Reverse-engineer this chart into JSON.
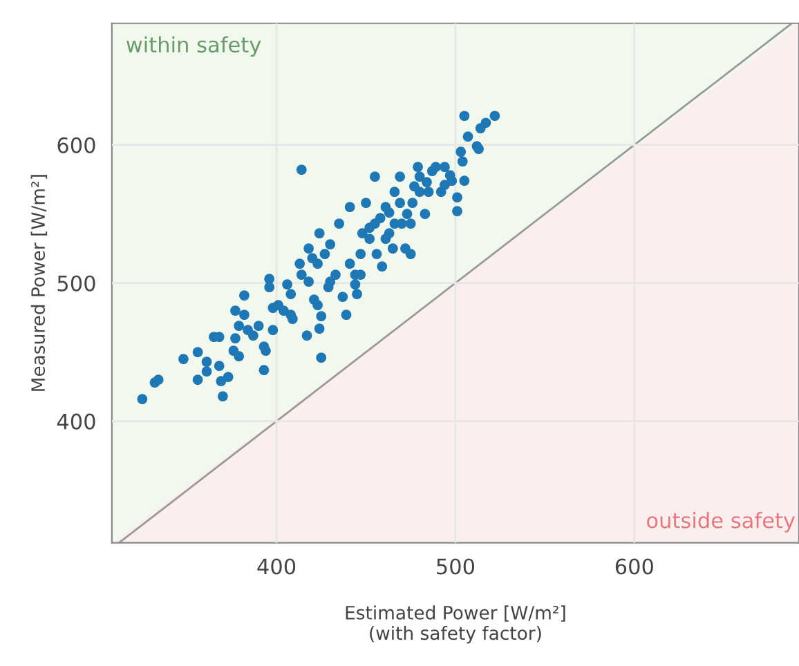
{
  "chart_data": {
    "type": "scatter",
    "xlabel": "Estimated Power [W/m²]\n(with safety factor)",
    "ylabel": "Measured Power [W/m²]",
    "annotations": [
      "within safety",
      "outside safety"
    ],
    "xlim": [
      308,
      692
    ],
    "ylim": [
      312,
      688
    ],
    "xticks": [
      400,
      500,
      600
    ],
    "yticks": [
      400,
      500,
      600
    ],
    "grid": true,
    "series": [
      {
        "type": "line",
        "color": "#999999",
        "x": [
          312,
          688
        ],
        "values": [
          312,
          688
        ]
      },
      {
        "color": "#1f77b4",
        "marker": "circle",
        "x": [
          325,
          334,
          332,
          348,
          356,
          356,
          361,
          361,
          368,
          370,
          369,
          373,
          365,
          368,
          376,
          379,
          377,
          379,
          382,
          382,
          384,
          387,
          390,
          393,
          394,
          393,
          396,
          396,
          398,
          401,
          398,
          404,
          406,
          408,
          409,
          413,
          414,
          417,
          418,
          420,
          421,
          424,
          425,
          425,
          424,
          427,
          429,
          430,
          433,
          435,
          437,
          439,
          441,
          441,
          444,
          445,
          447,
          448,
          450,
          452,
          455,
          455,
          456,
          459,
          461,
          463,
          465,
          466,
          469,
          470,
          472,
          475,
          473,
          476,
          479,
          480,
          483,
          484,
          487,
          489,
          492,
          494,
          497,
          498,
          501,
          501,
          503,
          504,
          505,
          505,
          507,
          512,
          513,
          514,
          517,
          522,
          418,
          423,
          414,
          430,
          447,
          461,
          466,
          477,
          485,
          475,
          494,
          377,
          408,
          423,
          444,
          452,
          458,
          463,
          469,
          480
        ],
        "values": [
          416,
          430,
          428,
          445,
          450,
          430,
          443,
          436,
          440,
          418,
          429,
          432,
          461,
          461,
          451,
          447,
          460,
          469,
          491,
          477,
          466,
          462,
          469,
          454,
          451,
          437,
          503,
          497,
          482,
          484,
          466,
          480,
          499,
          492,
          474,
          514,
          582,
          462,
          501,
          518,
          488,
          467,
          476,
          446,
          536,
          521,
          497,
          528,
          506,
          543,
          490,
          477,
          514,
          555,
          506,
          492,
          521,
          536,
          558,
          532,
          577,
          543,
          521,
          512,
          555,
          536,
          525,
          566,
          577,
          543,
          525,
          521,
          550,
          558,
          584,
          566,
          550,
          573,
          581,
          584,
          566,
          571,
          578,
          574,
          562,
          552,
          595,
          588,
          574,
          621,
          606,
          599,
          597,
          612,
          616,
          621,
          525,
          514,
          506,
          501,
          506,
          532,
          543,
          570,
          566,
          543,
          584,
          480,
          477,
          484,
          499,
          540,
          547,
          551,
          558,
          577
        ]
      }
    ]
  }
}
